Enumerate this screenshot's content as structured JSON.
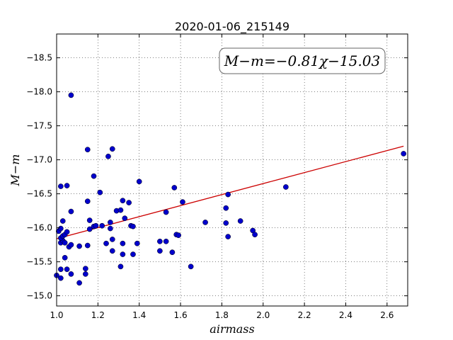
{
  "chart_data": {
    "type": "scatter",
    "title": "2020-01-06_215149",
    "xlabel": "airmass",
    "ylabel": "M−m",
    "annotation": "M−m=−0.81χ−15.03",
    "xlim": [
      1.0,
      2.7
    ],
    "ylim": [
      -18.85,
      -14.85
    ],
    "y_inverted": true,
    "grid": true,
    "x_ticks": [
      1.0,
      1.2,
      1.4,
      1.6,
      1.8,
      2.0,
      2.2,
      2.4,
      2.6
    ],
    "x_tick_labels": [
      "1.0",
      "1.2",
      "1.4",
      "1.6",
      "1.8",
      "2.0",
      "2.2",
      "2.4",
      "2.6"
    ],
    "y_ticks": [
      -15.0,
      -15.5,
      -16.0,
      -16.5,
      -17.0,
      -17.5,
      -18.0,
      -18.5
    ],
    "y_tick_labels": [
      "−15.0",
      "−15.5",
      "−16.0",
      "−16.5",
      "−17.0",
      "−17.5",
      "−18.0",
      "−18.5"
    ],
    "fit_line": {
      "slope": -0.81,
      "intercept": -15.03,
      "x_range": [
        1.0,
        2.68
      ],
      "color": "#cc0000"
    },
    "point_color": "#0000cc",
    "points": [
      {
        "x": 1.0,
        "y": -15.3
      },
      {
        "x": 1.02,
        "y": -15.26
      },
      {
        "x": 1.02,
        "y": -15.39
      },
      {
        "x": 1.05,
        "y": -15.39
      },
      {
        "x": 1.07,
        "y": -15.32
      },
      {
        "x": 1.04,
        "y": -15.56
      },
      {
        "x": 1.11,
        "y": -15.19
      },
      {
        "x": 1.14,
        "y": -15.32
      },
      {
        "x": 1.14,
        "y": -15.4
      },
      {
        "x": 1.31,
        "y": -15.43
      },
      {
        "x": 1.65,
        "y": -15.43
      },
      {
        "x": 1.02,
        "y": -15.78
      },
      {
        "x": 1.03,
        "y": -15.81
      },
      {
        "x": 1.04,
        "y": -15.78
      },
      {
        "x": 1.02,
        "y": -15.85
      },
      {
        "x": 1.03,
        "y": -15.88
      },
      {
        "x": 1.04,
        "y": -15.9
      },
      {
        "x": 1.06,
        "y": -15.72
      },
      {
        "x": 1.07,
        "y": -15.75
      },
      {
        "x": 1.11,
        "y": -15.73
      },
      {
        "x": 1.15,
        "y": -15.74
      },
      {
        "x": 1.01,
        "y": -15.95
      },
      {
        "x": 1.02,
        "y": -15.99
      },
      {
        "x": 1.05,
        "y": -15.94
      },
      {
        "x": 1.03,
        "y": -16.1
      },
      {
        "x": 1.07,
        "y": -16.24
      },
      {
        "x": 1.16,
        "y": -15.98
      },
      {
        "x": 1.18,
        "y": -16.02
      },
      {
        "x": 1.19,
        "y": -16.03
      },
      {
        "x": 1.16,
        "y": -16.11
      },
      {
        "x": 1.22,
        "y": -16.03
      },
      {
        "x": 1.24,
        "y": -15.77
      },
      {
        "x": 1.27,
        "y": -15.66
      },
      {
        "x": 1.27,
        "y": -15.83
      },
      {
        "x": 1.32,
        "y": -15.61
      },
      {
        "x": 1.32,
        "y": -15.77
      },
      {
        "x": 1.26,
        "y": -15.99
      },
      {
        "x": 1.26,
        "y": -16.08
      },
      {
        "x": 1.33,
        "y": -16.14
      },
      {
        "x": 1.36,
        "y": -16.03
      },
      {
        "x": 1.37,
        "y": -16.02
      },
      {
        "x": 1.37,
        "y": -15.61
      },
      {
        "x": 1.39,
        "y": -15.77
      },
      {
        "x": 1.29,
        "y": -16.25
      },
      {
        "x": 1.31,
        "y": -16.26
      },
      {
        "x": 1.32,
        "y": -16.4
      },
      {
        "x": 1.35,
        "y": -16.37
      },
      {
        "x": 1.15,
        "y": -16.39
      },
      {
        "x": 1.21,
        "y": -16.52
      },
      {
        "x": 1.02,
        "y": -16.61
      },
      {
        "x": 1.05,
        "y": -16.62
      },
      {
        "x": 1.18,
        "y": -16.76
      },
      {
        "x": 1.25,
        "y": -17.05
      },
      {
        "x": 1.15,
        "y": -17.15
      },
      {
        "x": 1.27,
        "y": -17.16
      },
      {
        "x": 1.4,
        "y": -16.68
      },
      {
        "x": 1.07,
        "y": -17.95
      },
      {
        "x": 1.5,
        "y": -15.66
      },
      {
        "x": 1.5,
        "y": -15.8
      },
      {
        "x": 1.53,
        "y": -15.8
      },
      {
        "x": 1.56,
        "y": -15.64
      },
      {
        "x": 1.58,
        "y": -15.9
      },
      {
        "x": 1.59,
        "y": -15.89
      },
      {
        "x": 1.53,
        "y": -16.23
      },
      {
        "x": 1.61,
        "y": -16.38
      },
      {
        "x": 1.57,
        "y": -16.59
      },
      {
        "x": 1.72,
        "y": -16.08
      },
      {
        "x": 1.82,
        "y": -16.07
      },
      {
        "x": 1.83,
        "y": -15.87
      },
      {
        "x": 1.82,
        "y": -16.29
      },
      {
        "x": 1.83,
        "y": -16.49
      },
      {
        "x": 1.89,
        "y": -16.1
      },
      {
        "x": 1.95,
        "y": -15.96
      },
      {
        "x": 1.96,
        "y": -15.9
      },
      {
        "x": 2.11,
        "y": -16.6
      },
      {
        "x": 2.68,
        "y": -17.09
      }
    ]
  }
}
